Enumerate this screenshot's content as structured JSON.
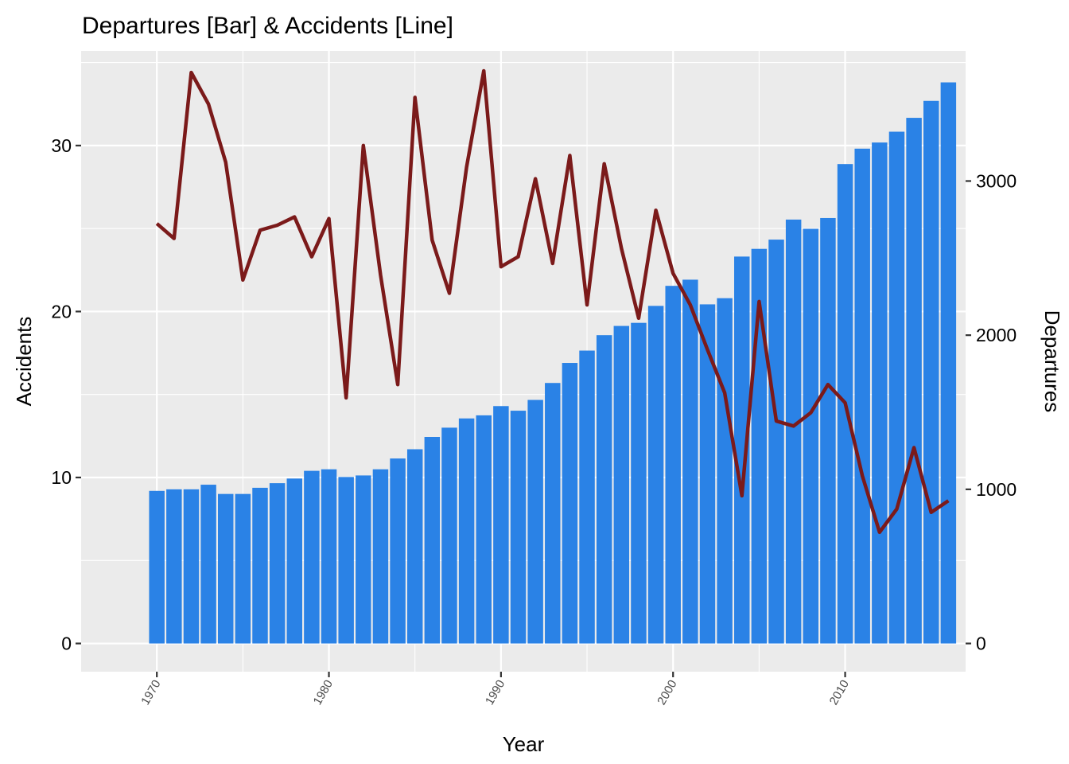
{
  "chart_data": {
    "type": "bar+line",
    "title": "Departures [Bar] & Accidents [Line]",
    "xlabel": "Year",
    "ylabel_left": "Accidents",
    "ylabel_right": "Departures",
    "x": [
      1970,
      1971,
      1972,
      1973,
      1974,
      1975,
      1976,
      1977,
      1978,
      1979,
      1980,
      1981,
      1982,
      1983,
      1984,
      1985,
      1986,
      1987,
      1988,
      1989,
      1990,
      1991,
      1992,
      1993,
      1994,
      1995,
      1996,
      1997,
      1998,
      1999,
      2000,
      2001,
      2002,
      2003,
      2004,
      2005,
      2006,
      2007,
      2008,
      2009,
      2010,
      2011,
      2012,
      2013,
      2014,
      2015,
      2016
    ],
    "xlim": [
      1965.6,
      2017
    ],
    "x_ticks": [
      1970,
      1980,
      1990,
      2000,
      2010
    ],
    "ylim_left": [
      -1.7,
      35.7
    ],
    "y_ticks_left": [
      0,
      10,
      20,
      30
    ],
    "ylim_right": [
      -183,
      3844
    ],
    "y_ticks_right": [
      0,
      1000,
      2000,
      3000
    ],
    "grid": true,
    "series": [
      {
        "type": "bar",
        "axis": "right",
        "color": "#2a82e6",
        "values": [
          990,
          1000,
          1000,
          1030,
          970,
          970,
          1010,
          1040,
          1070,
          1120,
          1130,
          1080,
          1090,
          1130,
          1200,
          1260,
          1340,
          1400,
          1460,
          1480,
          1540,
          1510,
          1580,
          1690,
          1820,
          1900,
          2000,
          2060,
          2080,
          2190,
          2320,
          2360,
          2200,
          2240,
          2510,
          2560,
          2620,
          2750,
          2690,
          2760,
          3110,
          3210,
          3250,
          3320,
          3410,
          3520,
          3640
        ]
      },
      {
        "type": "line",
        "axis": "left",
        "color": "#7b1a1a",
        "values": [
          25.3,
          24.4,
          34.4,
          32.5,
          29.0,
          21.9,
          24.9,
          25.2,
          25.7,
          23.3,
          25.6,
          14.8,
          30.0,
          22.2,
          15.6,
          32.9,
          24.3,
          21.1,
          28.7,
          34.5,
          22.7,
          23.3,
          28.0,
          22.9,
          29.4,
          20.4,
          28.9,
          23.8,
          19.6,
          26.1,
          22.3,
          20.4,
          17.7,
          15.1,
          8.9,
          20.6,
          13.4,
          13.1,
          13.9,
          15.6,
          14.5,
          10.1,
          6.7,
          8.1,
          11.8,
          7.9,
          8.6
        ]
      }
    ]
  }
}
